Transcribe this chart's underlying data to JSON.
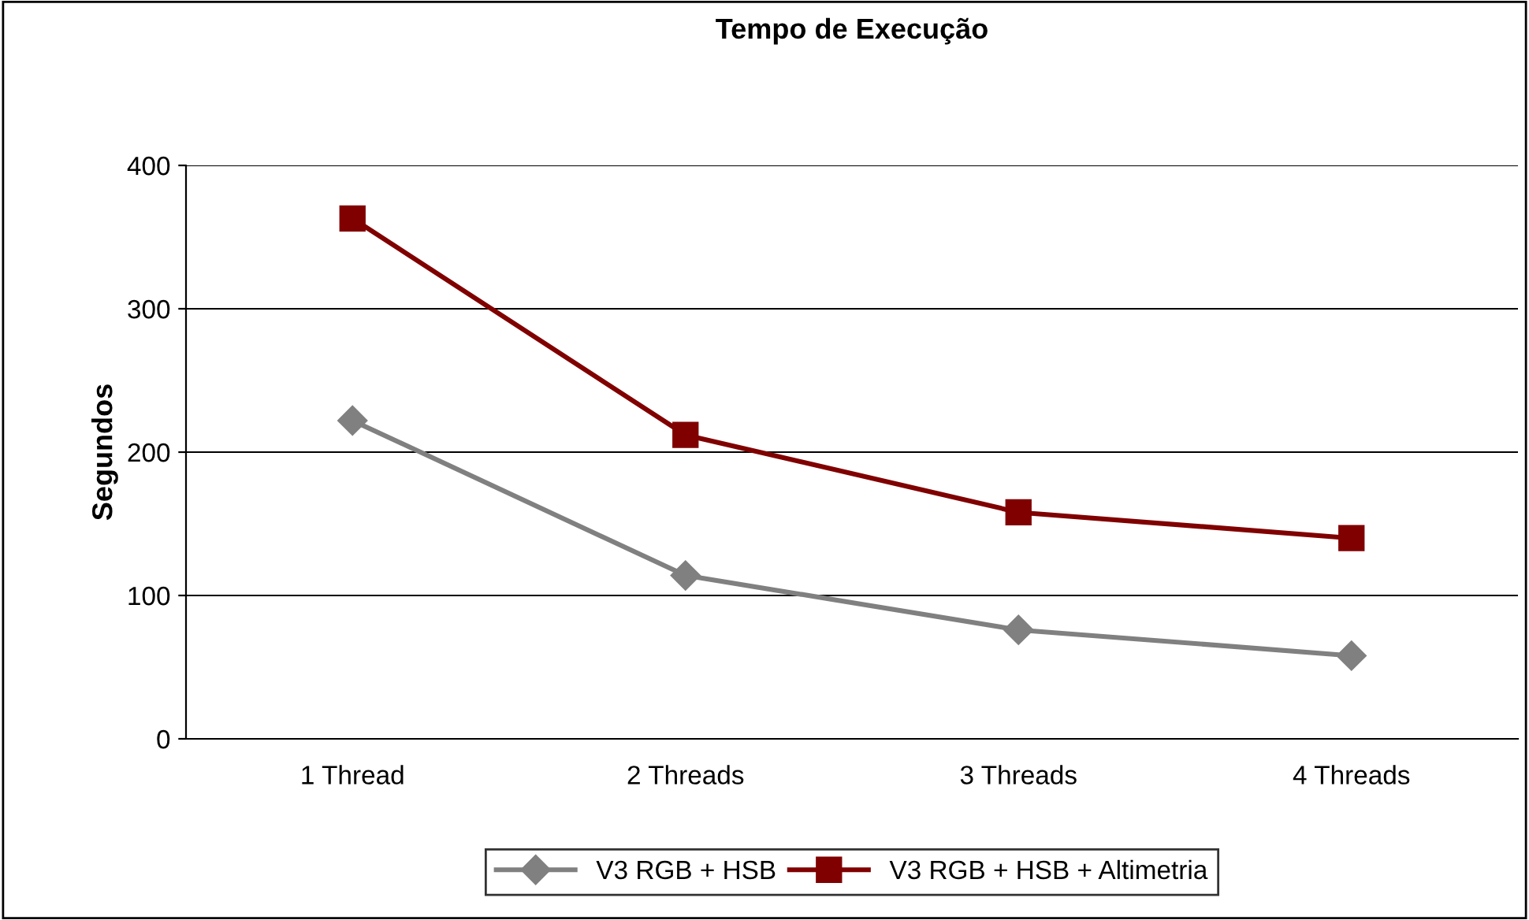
{
  "chart_data": {
    "type": "line",
    "title": "Tempo de Execução",
    "ylabel": "Segundos",
    "categories": [
      "1 Thread",
      "2 Threads",
      "3 Threads",
      "4 Threads"
    ],
    "series": [
      {
        "name": "V3 RGB + HSB",
        "color": "#808080",
        "marker": "diamond",
        "values": [
          222,
          114,
          76,
          58
        ]
      },
      {
        "name": "V3 RGB + HSB + Altimetria",
        "color": "#800000",
        "marker": "square",
        "values": [
          363,
          212,
          158,
          140
        ]
      }
    ],
    "ylim": [
      0,
      400
    ],
    "yticks": [
      0,
      100,
      200,
      300,
      400
    ],
    "grid": "y",
    "legend": "bottom",
    "line_style": "solid"
  }
}
